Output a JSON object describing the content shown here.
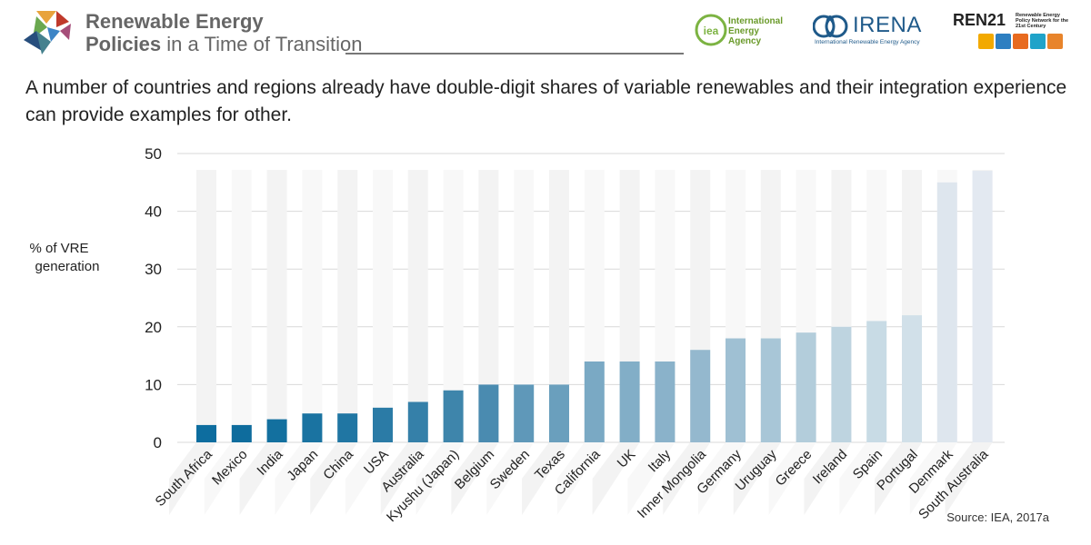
{
  "header": {
    "title_line1": "Renewable Energy",
    "title_line2_bold": "Policies",
    "title_line2_rest": " in a Time of Transition",
    "iea_text": "International Energy Agency",
    "iea_mark": "iea",
    "irena_text": "IRENA",
    "irena_sub": "International Renewable Energy Agency",
    "ren_text": "REN21",
    "ren_sub": "Renewable Energy Policy Network for the 21st Century"
  },
  "subtitle": "A number of countries and regions already have double-digit shares of variable renewables and their integration experience can provide examples for other.",
  "source": "Source: IEA, 2017a",
  "chart_data": {
    "type": "bar",
    "title": "",
    "ylabel": "% of VRE generation",
    "ylabel_lines": [
      "% of VRE",
      "generation"
    ],
    "xlabel": "",
    "ylim": [
      0,
      50
    ],
    "yticks": [
      0,
      10,
      20,
      30,
      40,
      50
    ],
    "grid": true,
    "categories": [
      "South Africa",
      "Mexico",
      "India",
      "Japan",
      "China",
      "USA",
      "Australia",
      "Kyushu (Japan)",
      "Belgium",
      "Sweden",
      "Texas",
      "California",
      "UK",
      "Italy",
      "Inner Mongolia",
      "Germany",
      "Uruguay",
      "Greece",
      "Ireland",
      "Spain",
      "Portugal",
      "Denmark",
      "South Australia"
    ],
    "values": [
      3,
      3,
      4,
      5,
      5,
      6,
      7,
      9,
      10,
      10,
      10,
      14,
      14,
      14,
      16,
      18,
      18,
      19,
      20,
      21,
      22,
      45,
      47
    ],
    "colors": [
      "#0d6d9f",
      "#0e6c9d",
      "#13709f",
      "#1a73a1",
      "#2076a3",
      "#2b7ba6",
      "#3580a9",
      "#3e85ab",
      "#4a8bb0",
      "#5f98b9",
      "#6a9fbd",
      "#7aa9c4",
      "#82aec7",
      "#8ab2ca",
      "#94b8ce",
      "#9fc0d3",
      "#a8c6d7",
      "#b3cddb",
      "#bed4e0",
      "#c8dbe5",
      "#d1e0e9",
      "#dee6ee",
      "#e3e9f1"
    ]
  }
}
